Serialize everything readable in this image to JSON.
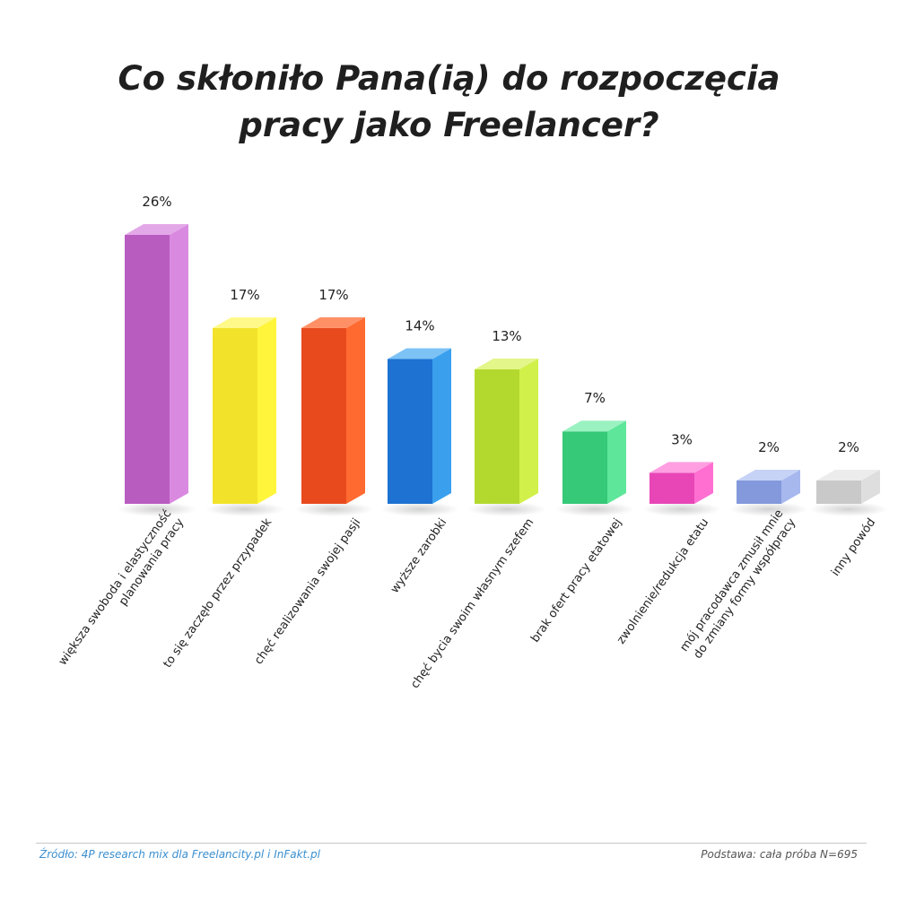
{
  "chart_data": {
    "type": "bar",
    "title_lines": [
      "Co skłoniło Pana(ią) do rozpoczęcia",
      "pracy jako Freelancer?"
    ],
    "unit": "%",
    "ylim": [
      0,
      26
    ],
    "grid": false,
    "categories": [
      [
        "większa swoboda i elastyczność",
        "planowania pracy"
      ],
      [
        "to się zaczęło przez przypadek"
      ],
      [
        "chęć realizowania swojej pasji"
      ],
      [
        "wyższe zarobki"
      ],
      [
        "chęć bycia swoim własnym szefem"
      ],
      [
        "brak ofert pracy etatowej"
      ],
      [
        "zwolnienie/redukcja etatu"
      ],
      [
        "mój pracodawca zmusił mnie",
        "do zmiany formy współpracy"
      ],
      [
        "inny powód"
      ]
    ],
    "values": [
      26,
      17,
      17,
      14,
      13,
      7,
      3,
      2,
      2
    ],
    "value_labels": [
      "26%",
      "17%",
      "17%",
      "14%",
      "13%",
      "7%",
      "3%",
      "2%",
      "2%"
    ],
    "colors": [
      {
        "front": "#b95cc0",
        "side": "#d98ae0",
        "top": "#e3a8e8"
      },
      {
        "front": "#f2e32a",
        "side": "#fff53a",
        "top": "#fff98a"
      },
      {
        "front": "#e84a1e",
        "side": "#ff6a30",
        "top": "#ff9066"
      },
      {
        "front": "#1d72d2",
        "side": "#3aa0ee",
        "top": "#7cc2f5"
      },
      {
        "front": "#b3d92e",
        "side": "#d2f04a",
        "top": "#e3f68a"
      },
      {
        "front": "#35c978",
        "side": "#5ee69a",
        "top": "#9af2c0"
      },
      {
        "front": "#e846b6",
        "side": "#ff6fd2",
        "top": "#ff9fe2"
      },
      {
        "front": "#8499dc",
        "side": "#a6b8ee",
        "top": "#c6d2f6"
      },
      {
        "front": "#c9c9c9",
        "side": "#dedede",
        "top": "#ececec"
      }
    ]
  },
  "footer": {
    "source": "Źródło: 4P research mix dla Freelancity.pl i InFakt.pl",
    "basis": "Podstawa: cała próba N=695"
  }
}
